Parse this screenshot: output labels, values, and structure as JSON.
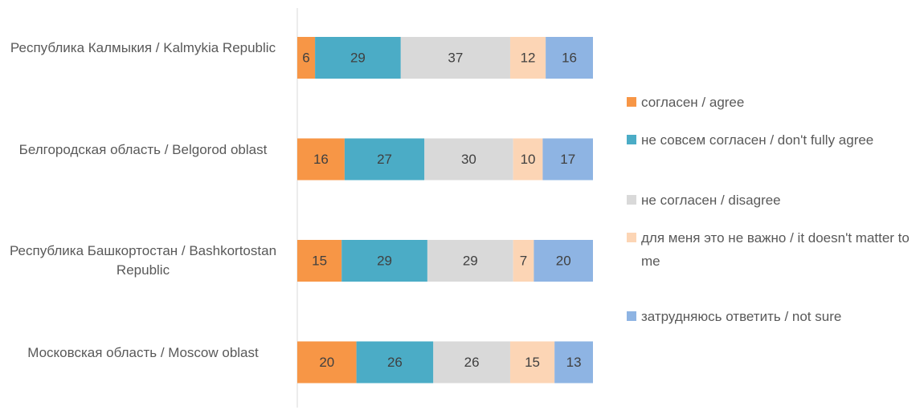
{
  "chart_data": {
    "type": "stacked-bar-horizontal",
    "categories": [
      "Республика Калмыкия / Kalmykia Republic",
      "Белгородская область / Belgorod oblast",
      "Республика Башкортостан / Bashkortostan Republic",
      "Московская область / Moscow oblast"
    ],
    "series": [
      {
        "name": "согласен / agree",
        "color": "#f79646",
        "values": [
          6,
          16,
          15,
          20
        ]
      },
      {
        "name": "не совсем согласен / don't fully agree",
        "color": "#4bacc6",
        "values": [
          29,
          27,
          29,
          26
        ]
      },
      {
        "name": "не согласен / disagree",
        "color": "#d9d9d9",
        "values": [
          37,
          30,
          29,
          26
        ]
      },
      {
        "name": "для меня это не важно / it doesn't matter to me",
        "color": "#fcd5b5",
        "values": [
          12,
          10,
          7,
          15
        ]
      },
      {
        "name": "затрудняюсь ответить / not sure",
        "color": "#8eb4e3",
        "values": [
          16,
          17,
          20,
          13
        ]
      }
    ],
    "xlim": [
      0,
      100
    ]
  }
}
